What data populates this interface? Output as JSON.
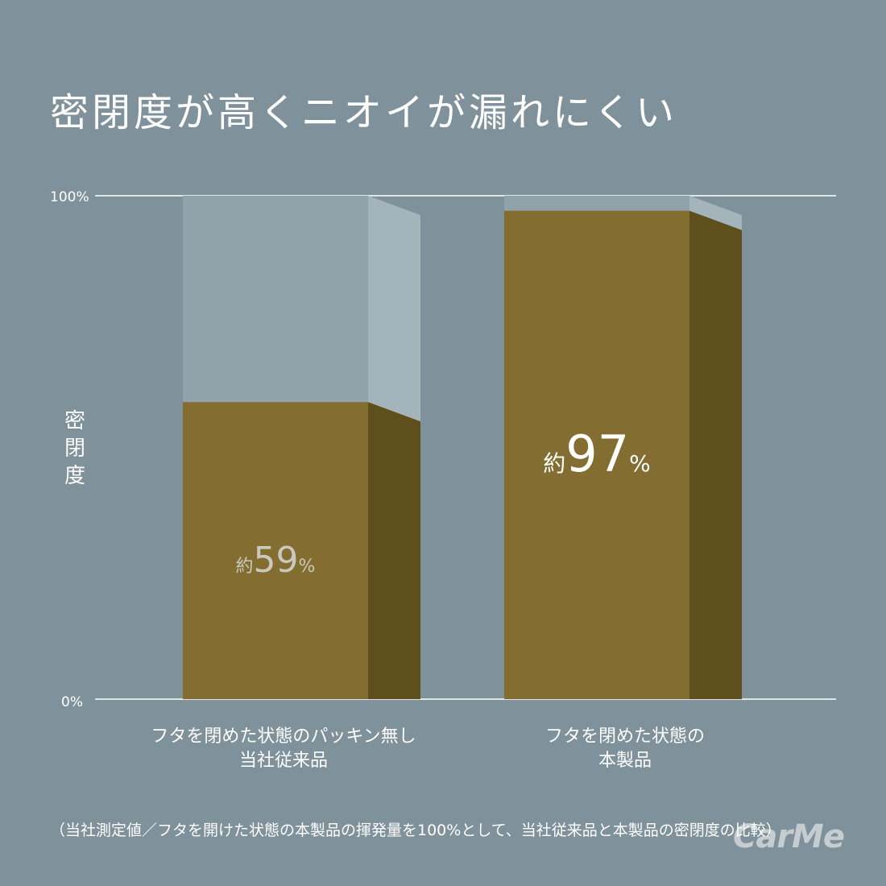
{
  "title": "密閉度が高くニオイが漏れにくい",
  "footnote": "（当社測定値／フタを開けた状態の本製品の揮発量を100%として、当社従来品と本製品の密閉度の比較）",
  "logo_text": "CarMe",
  "colors": {
    "background": "#7f919a",
    "bar_fill_front": "#836d30",
    "bar_fill_side": "#5e4f1c",
    "bar_empty_front": "#90a2aa",
    "bar_empty_side": "#a4b4bb",
    "label_light": "#c9c9bd",
    "label_white": "#ffffff"
  },
  "chart_data": {
    "type": "bar",
    "title": "密閉度が高くニオイが漏れにくい",
    "ylabel": "密閉度",
    "ylim": [
      0,
      100
    ],
    "yticks": [
      "0%",
      "100%"
    ],
    "categories": [
      {
        "line1": "フタを閉めた状態のパッキン無し",
        "line2": "当社従来品"
      },
      {
        "line1": "フタを閉めた状態の",
        "line2": "本製品"
      }
    ],
    "values": [
      59,
      97
    ],
    "value_labels": [
      {
        "prefix": "約",
        "number": "59",
        "unit": "%"
      },
      {
        "prefix": "約",
        "number": "97",
        "unit": "%"
      }
    ],
    "grid": false
  }
}
